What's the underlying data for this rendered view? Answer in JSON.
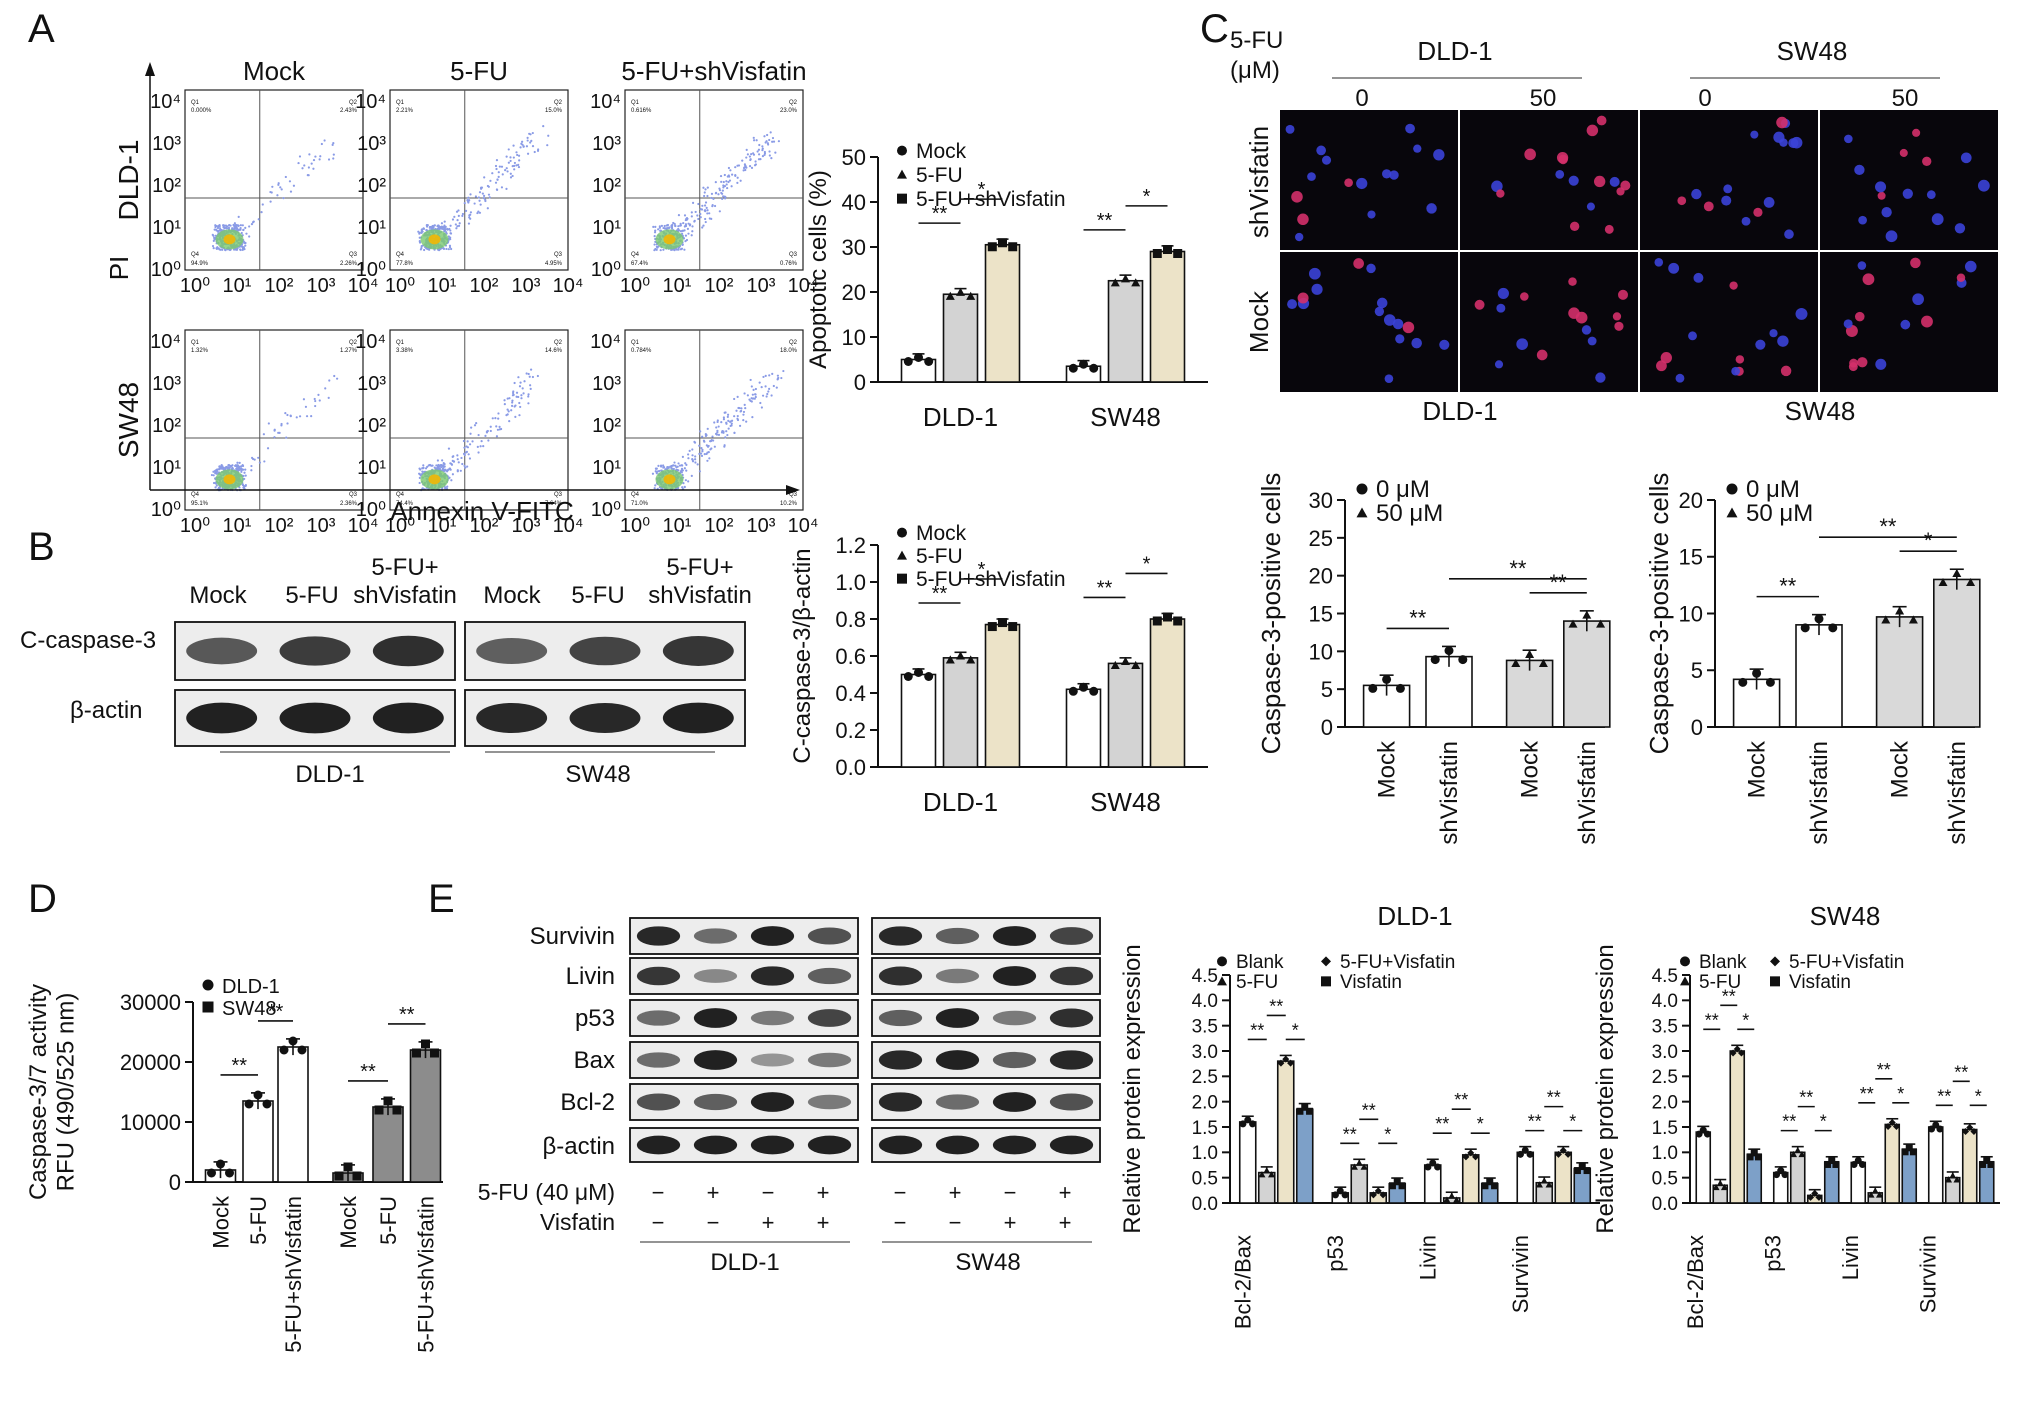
{
  "panel_letters": [
    "A",
    "B",
    "C",
    "D",
    "E"
  ],
  "panelA": {
    "conditions": [
      "Mock",
      "5-FU",
      "5-FU+shVisfatin"
    ],
    "rows": [
      "DLD-1",
      "SW48"
    ],
    "y_axis_label": "PI",
    "x_axis_label": "Annexin V-FITC",
    "y_ticks": [
      "10⁴",
      "10³",
      "10²",
      "10¹",
      "10⁰"
    ],
    "x_ticks": [
      "10⁰",
      "10¹",
      "10²",
      "10³",
      "10⁴"
    ],
    "quadrants": [
      [
        {
          "q1": "0.000%",
          "q2": "2.43%",
          "q3": "2.26%",
          "q4": "94.9%"
        },
        {
          "q1": "2.21%",
          "q2": "15.0%",
          "q3": "4.95%",
          "q4": "77.8%"
        },
        {
          "q1": "0.616%",
          "q2": "23.0%",
          "q3": "0.76%",
          "q4": "67.4%"
        }
      ],
      [
        {
          "q1": "1.32%",
          "q2": "1.27%",
          "q3": "2.36%",
          "q4": "95.1%"
        },
        {
          "q1": "3.38%",
          "q2": "14.6%",
          "q3": "7.64%",
          "q4": "74.4%"
        },
        {
          "q1": "0.784%",
          "q2": "18.0%",
          "q3": "10.2%",
          "q4": "71.0%"
        }
      ]
    ]
  },
  "panelB": {
    "lanes_dld1": [
      "Mock",
      "5-FU",
      "5-FU+\nshVisfatin"
    ],
    "lanes_sw48": [
      "Mock",
      "5-FU",
      "5-FU+\nshVisfatin"
    ],
    "bands": [
      "C-caspase-3",
      "β-actin"
    ],
    "cell_lines": [
      "DLD-1",
      "SW48"
    ]
  },
  "panelC": {
    "header_label": "5-FU\n(μM)",
    "groups": [
      "DLD-1",
      "SW48"
    ],
    "concentrations": [
      "0",
      "50",
      "0",
      "50"
    ],
    "row_labels": [
      "shVisfatin",
      "Mock"
    ],
    "bottom_labels": [
      "DLD-1",
      "SW48"
    ]
  },
  "panelE_blot": {
    "bands": [
      "Survivin",
      "Livin",
      "p53",
      "Bax",
      "Bcl-2",
      "β-actin"
    ],
    "treatment_rows": [
      {
        "label": "5-FU (40 μM)",
        "signs": [
          "−",
          "+",
          "−",
          "+"
        ]
      },
      {
        "label": "Visfatin",
        "signs": [
          "−",
          "−",
          "+",
          "+"
        ]
      }
    ],
    "cell_lines": [
      "DLD-1",
      "SW48"
    ]
  },
  "chart_data": [
    {
      "id": "A-apoptosis",
      "type": "bar",
      "ylabel": "Apoptotic cells (%)",
      "ylim": [
        0,
        50
      ],
      "yticks": [
        0,
        10,
        20,
        30,
        40,
        50
      ],
      "categories": [
        "DLD-1",
        "SW48"
      ],
      "series": [
        {
          "name": "Mock",
          "values": [
            5,
            3.5
          ],
          "color": "#ffffff",
          "marker": "circle"
        },
        {
          "name": "5-FU",
          "values": [
            19.5,
            22.5
          ],
          "color": "#d3d3d3",
          "marker": "triangle"
        },
        {
          "name": "5-FU+shVisfatin",
          "values": [
            30.5,
            29
          ],
          "color": "#ece3c8",
          "marker": "square"
        }
      ],
      "significance": [
        {
          "group": 0,
          "from": 0,
          "to": 1,
          "label": "**",
          "level": 0
        },
        {
          "group": 0,
          "from": 1,
          "to": 2,
          "label": "*",
          "level": 1
        },
        {
          "group": 1,
          "from": 0,
          "to": 1,
          "label": "**",
          "level": 0
        },
        {
          "group": 1,
          "from": 1,
          "to": 2,
          "label": "*",
          "level": 1
        }
      ],
      "legend_position": "top-left"
    },
    {
      "id": "B-ccasp3",
      "type": "bar",
      "ylabel": "C-caspase-3/β-actin",
      "ylim": [
        0,
        1.2
      ],
      "yticks": [
        0.0,
        0.2,
        0.4,
        0.6,
        0.8,
        1.0,
        1.2
      ],
      "categories": [
        "DLD-1",
        "SW48"
      ],
      "series": [
        {
          "name": "Mock",
          "values": [
            0.5,
            0.42
          ],
          "color": "#ffffff",
          "marker": "circle"
        },
        {
          "name": "5-FU",
          "values": [
            0.59,
            0.56
          ],
          "color": "#d3d3d3",
          "marker": "triangle"
        },
        {
          "name": "5-FU+shVisfatin",
          "values": [
            0.77,
            0.8
          ],
          "color": "#ece3c8",
          "marker": "square"
        }
      ],
      "significance": [
        {
          "group": 0,
          "from": 0,
          "to": 1,
          "label": "**",
          "level": 0
        },
        {
          "group": 0,
          "from": 1,
          "to": 2,
          "label": "*",
          "level": 1
        },
        {
          "group": 1,
          "from": 0,
          "to": 1,
          "label": "**",
          "level": 0
        },
        {
          "group": 1,
          "from": 1,
          "to": 2,
          "label": "*",
          "level": 1
        }
      ],
      "legend_position": "top-left"
    },
    {
      "id": "C-dld1",
      "type": "bar",
      "ylabel": "Caspase-3-positive cells",
      "ylim": [
        0,
        30
      ],
      "yticks": [
        0,
        5,
        10,
        15,
        20,
        25,
        30
      ],
      "categories": [
        "Mock",
        "shVisfatin",
        "Mock",
        "shVisfatin"
      ],
      "values": [
        5.5,
        9.3,
        8.8,
        14
      ],
      "colors": [
        "#ffffff",
        "#ffffff",
        "#d9d9d9",
        "#d9d9d9"
      ],
      "legend": [
        {
          "name": "0 μM",
          "marker": "circle"
        },
        {
          "name": "50 μM",
          "marker": "triangle"
        }
      ],
      "significance": [
        {
          "from": 0,
          "to": 1,
          "label": "**"
        },
        {
          "from": 2,
          "to": 3,
          "label": "**"
        },
        {
          "from": 1,
          "to": 3,
          "label": "**"
        }
      ]
    },
    {
      "id": "C-sw48",
      "type": "bar",
      "ylabel": "Caspase-3-positive cells",
      "ylim": [
        0,
        20
      ],
      "yticks": [
        0,
        5,
        10,
        15,
        20
      ],
      "categories": [
        "Mock",
        "shVisfatin",
        "Mock",
        "shVisfatin"
      ],
      "values": [
        4.2,
        9,
        9.7,
        13
      ],
      "colors": [
        "#ffffff",
        "#ffffff",
        "#d9d9d9",
        "#d9d9d9"
      ],
      "legend": [
        {
          "name": "0 μM",
          "marker": "circle"
        },
        {
          "name": "50 μM",
          "marker": "triangle"
        }
      ],
      "significance": [
        {
          "from": 0,
          "to": 1,
          "label": "**"
        },
        {
          "from": 2,
          "to": 3,
          "label": "*"
        },
        {
          "from": 1,
          "to": 3,
          "label": "**"
        }
      ]
    },
    {
      "id": "D-activity",
      "type": "bar",
      "ylabel": "Caspase-3/7 activity\nRFU (490/525 nm)",
      "ylim": [
        0,
        30000
      ],
      "yticks": [
        0,
        10000,
        20000,
        30000
      ],
      "categories": [
        "Mock",
        "5-FU",
        "5-FU+shVisfatin",
        "Mock",
        "5-FU",
        "5-FU+shVisfatin"
      ],
      "values": [
        2000,
        13500,
        22500,
        1500,
        12500,
        22000
      ],
      "colors": [
        "#ffffff",
        "#ffffff",
        "#ffffff",
        "#8c8c8c",
        "#8c8c8c",
        "#8c8c8c"
      ],
      "legend": [
        {
          "name": "DLD-1",
          "marker": "circle"
        },
        {
          "name": "SW48",
          "marker": "square"
        }
      ],
      "significance": [
        {
          "from": 0,
          "to": 1,
          "label": "**"
        },
        {
          "from": 1,
          "to": 2,
          "label": "**"
        },
        {
          "from": 3,
          "to": 4,
          "label": "**"
        },
        {
          "from": 4,
          "to": 5,
          "label": "**"
        }
      ]
    },
    {
      "id": "E-dld1",
      "type": "bar",
      "title": "DLD-1",
      "ylabel": "Relative protein expression",
      "ylim": [
        0,
        4.5
      ],
      "yticks": [
        0.0,
        0.5,
        1.0,
        1.5,
        2.0,
        2.5,
        3.0,
        3.5,
        4.0,
        4.5
      ],
      "categories": [
        "Bcl-2/Bax",
        "p53",
        "Livin",
        "Survivin"
      ],
      "series": [
        {
          "name": "Blank",
          "values": [
            1.6,
            0.2,
            0.75,
            1.0
          ],
          "color": "#ffffff",
          "marker": "circle"
        },
        {
          "name": "5-FU",
          "values": [
            0.6,
            0.75,
            0.1,
            0.4
          ],
          "color": "#d3d3d3",
          "marker": "triangle"
        },
        {
          "name": "5-FU+Visfatin",
          "values": [
            2.8,
            0.2,
            0.95,
            1.0
          ],
          "color": "#ece3c8",
          "marker": "diamond"
        },
        {
          "name": "Visfatin",
          "values": [
            1.85,
            0.38,
            0.38,
            0.68
          ],
          "color": "#7da0c8",
          "marker": "square"
        }
      ],
      "significance": [
        {
          "group": 0,
          "from": 0,
          "to": 1,
          "label": "**",
          "level": 0
        },
        {
          "group": 0,
          "from": 1,
          "to": 2,
          "label": "**",
          "level": 1
        },
        {
          "group": 0,
          "from": 2,
          "to": 3,
          "label": "*",
          "level": 0
        },
        {
          "group": 1,
          "from": 0,
          "to": 1,
          "label": "**",
          "level": 0
        },
        {
          "group": 1,
          "from": 1,
          "to": 2,
          "label": "**",
          "level": 1
        },
        {
          "group": 1,
          "from": 2,
          "to": 3,
          "label": "*",
          "level": 0
        },
        {
          "group": 2,
          "from": 0,
          "to": 1,
          "label": "**",
          "level": 0
        },
        {
          "group": 2,
          "from": 1,
          "to": 2,
          "label": "**",
          "level": 1
        },
        {
          "group": 2,
          "from": 2,
          "to": 3,
          "label": "*",
          "level": 0
        },
        {
          "group": 3,
          "from": 0,
          "to": 1,
          "label": "**",
          "level": 0
        },
        {
          "group": 3,
          "from": 1,
          "to": 2,
          "label": "**",
          "level": 1
        },
        {
          "group": 3,
          "from": 2,
          "to": 3,
          "label": "*",
          "level": 0
        }
      ],
      "legend_position": "top"
    },
    {
      "id": "E-sw48",
      "type": "bar",
      "title": "SW48",
      "ylabel": "Relative protein expression",
      "ylim": [
        0,
        4.5
      ],
      "yticks": [
        0.0,
        0.5,
        1.0,
        1.5,
        2.0,
        2.5,
        3.0,
        3.5,
        4.0,
        4.5
      ],
      "categories": [
        "Bcl-2/Bax",
        "p53",
        "Livin",
        "Survivin"
      ],
      "series": [
        {
          "name": "Blank",
          "values": [
            1.4,
            0.6,
            0.8,
            1.5
          ],
          "color": "#ffffff",
          "marker": "circle"
        },
        {
          "name": "5-FU",
          "values": [
            0.35,
            1.0,
            0.2,
            0.5
          ],
          "color": "#d3d3d3",
          "marker": "triangle"
        },
        {
          "name": "5-FU+Visfatin",
          "values": [
            3.0,
            0.15,
            1.55,
            1.45
          ],
          "color": "#ece3c8",
          "marker": "diamond"
        },
        {
          "name": "Visfatin",
          "values": [
            0.95,
            0.8,
            1.05,
            0.8
          ],
          "color": "#7da0c8",
          "marker": "square"
        }
      ],
      "significance": [
        {
          "group": 0,
          "from": 0,
          "to": 1,
          "label": "**",
          "level": 0
        },
        {
          "group": 0,
          "from": 1,
          "to": 2,
          "label": "**",
          "level": 1
        },
        {
          "group": 0,
          "from": 2,
          "to": 3,
          "label": "*",
          "level": 0
        },
        {
          "group": 1,
          "from": 0,
          "to": 1,
          "label": "**",
          "level": 0
        },
        {
          "group": 1,
          "from": 1,
          "to": 2,
          "label": "**",
          "level": 1
        },
        {
          "group": 1,
          "from": 2,
          "to": 3,
          "label": "*",
          "level": 0
        },
        {
          "group": 2,
          "from": 0,
          "to": 1,
          "label": "**",
          "level": 0
        },
        {
          "group": 2,
          "from": 1,
          "to": 2,
          "label": "**",
          "level": 1
        },
        {
          "group": 2,
          "from": 2,
          "to": 3,
          "label": "*",
          "level": 0
        },
        {
          "group": 3,
          "from": 0,
          "to": 1,
          "label": "**",
          "level": 0
        },
        {
          "group": 3,
          "from": 1,
          "to": 2,
          "label": "**",
          "level": 1
        },
        {
          "group": 3,
          "from": 2,
          "to": 3,
          "label": "*",
          "level": 0
        }
      ],
      "legend_position": "top"
    }
  ]
}
